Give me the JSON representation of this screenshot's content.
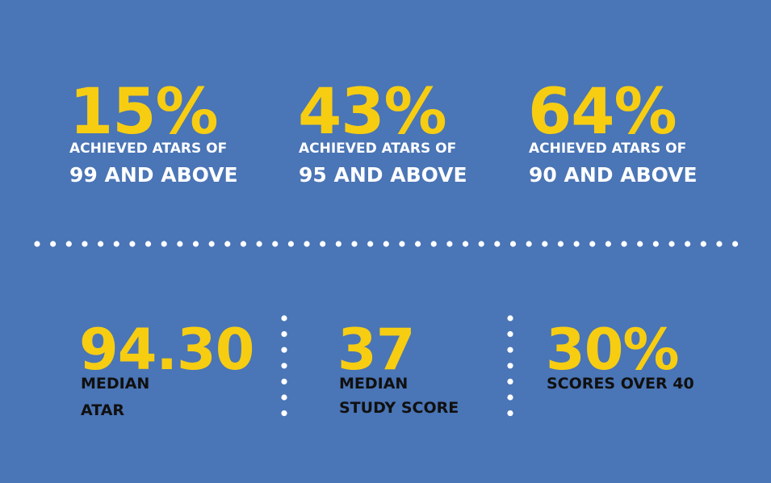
{
  "stats_top": [
    {
      "value": "15%",
      "line1": "ACHIEVED ATARS OF",
      "line2": "99 AND ABOVE"
    },
    {
      "value": "43%",
      "line1": "ACHIEVED ATARS OF",
      "line2": "95 AND ABOVE"
    },
    {
      "value": "64%",
      "line1": "ACHIEVED ATARS OF",
      "line2": "90 AND ABOVE"
    }
  ],
  "stats_bottom": [
    {
      "value": "94.30",
      "lines": [
        "MEDIAN",
        "ATAR"
      ]
    },
    {
      "value": "37",
      "lines": [
        "MEDIAN",
        "STUDY SCORE"
      ]
    },
    {
      "value": "30%",
      "lines": [
        "SCORES OVER 40"
      ]
    }
  ]
}
